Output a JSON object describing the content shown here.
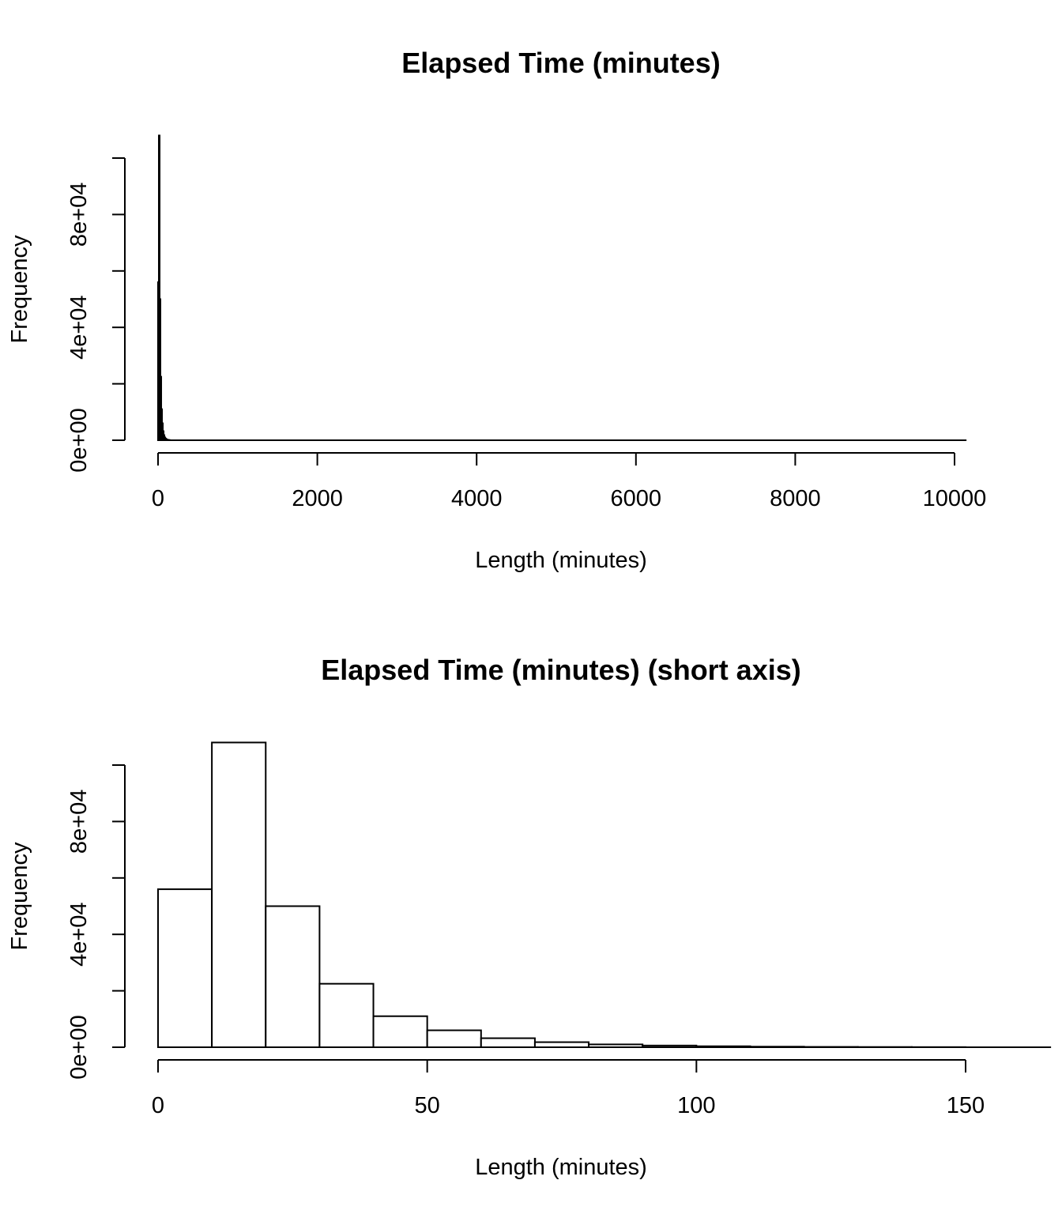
{
  "chart_data": [
    {
      "type": "bar",
      "title": "Elapsed Time (minutes)",
      "xlabel": "Length (minutes)",
      "ylabel": "Frequency",
      "xlim": [
        0,
        10150
      ],
      "ylim": [
        0,
        100000
      ],
      "grid": false,
      "x_ticks": [
        0,
        2000,
        4000,
        6000,
        8000,
        10000
      ],
      "x_tick_labels": [
        "0",
        "2000",
        "4000",
        "6000",
        "8000",
        "10000"
      ],
      "y_ticks": [
        0,
        20000,
        40000,
        60000,
        80000,
        100000
      ],
      "y_tick_labels": [
        "0e+00",
        "",
        "4e+04",
        "",
        "8e+04",
        ""
      ],
      "bin_width": 10,
      "bin_starts": [
        0,
        10,
        20,
        30,
        40,
        50,
        60,
        70,
        80,
        90,
        100,
        110,
        120,
        130,
        140
      ],
      "values": [
        56000,
        108000,
        50000,
        22500,
        11000,
        6000,
        3200,
        1800,
        1000,
        600,
        350,
        200,
        120,
        80,
        50
      ],
      "tail": {
        "from": 150,
        "to": 10150,
        "frequency": 0
      }
    },
    {
      "type": "bar",
      "title": "Elapsed Time (minutes) (short axis)",
      "xlabel": "Length (minutes)",
      "ylabel": "Frequency",
      "xlim": [
        0,
        150
      ],
      "ylim": [
        0,
        100000
      ],
      "grid": false,
      "x_ticks": [
        0,
        50,
        100,
        150
      ],
      "x_tick_labels": [
        "0",
        "50",
        "100",
        "150"
      ],
      "y_ticks": [
        0,
        20000,
        40000,
        60000,
        80000,
        100000
      ],
      "y_tick_labels": [
        "0e+00",
        "",
        "4e+04",
        "",
        "8e+04",
        ""
      ],
      "bin_width": 10,
      "bin_starts": [
        0,
        10,
        20,
        30,
        40,
        50,
        60,
        70,
        80,
        90,
        100,
        110,
        120,
        130,
        140,
        150
      ],
      "values": [
        56000,
        108000,
        50000,
        22500,
        11000,
        6000,
        3200,
        1800,
        1000,
        600,
        350,
        200,
        120,
        80,
        50,
        0
      ]
    }
  ]
}
